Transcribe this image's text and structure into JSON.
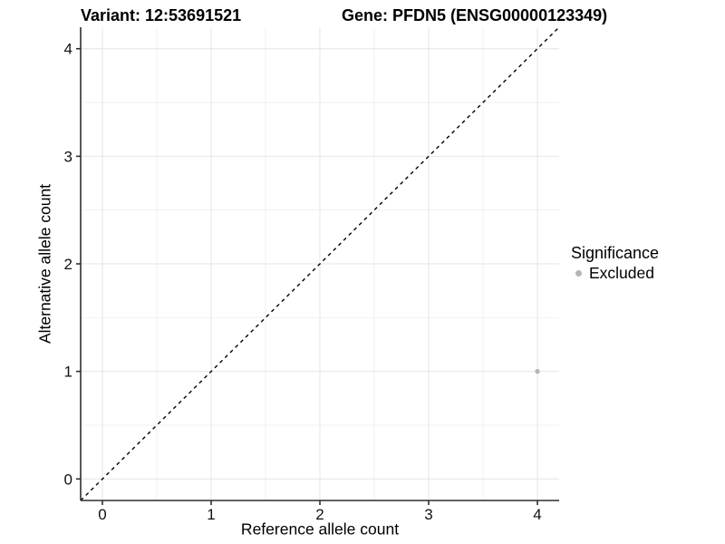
{
  "chart_data": {
    "type": "scatter",
    "title_left": "Variant: 12:53691521",
    "title_right": "Gene: PFDN5 (ENSG00000123349)",
    "xlabel": "Reference allele count",
    "ylabel": "Alternative allele count",
    "xlim": [
      -0.2,
      4.2
    ],
    "ylim": [
      -0.2,
      4.2
    ],
    "x_ticks": [
      0,
      1,
      2,
      3,
      4
    ],
    "y_ticks": [
      0,
      1,
      2,
      3,
      4
    ],
    "minor_ticks": [
      0.5,
      1.5,
      2.5,
      3.5
    ],
    "grid": true,
    "reference_line": {
      "slope": 1,
      "intercept": 0,
      "style": "dashed",
      "color": "#000000"
    },
    "series": [
      {
        "name": "Excluded",
        "color": "#b5b5b5",
        "points": [
          {
            "x": 4,
            "y": 1
          }
        ]
      }
    ],
    "legend": {
      "title": "Significance",
      "position": "right",
      "items": [
        {
          "label": "Excluded",
          "color": "#b5b5b5"
        }
      ]
    },
    "colors": {
      "grid_major": "#e4e4e4",
      "grid_minor": "#f0f0f0",
      "axis": "#2f2f2f",
      "tick_label": "#111111",
      "background": "#ffffff",
      "point": "#b5b5b5"
    }
  }
}
